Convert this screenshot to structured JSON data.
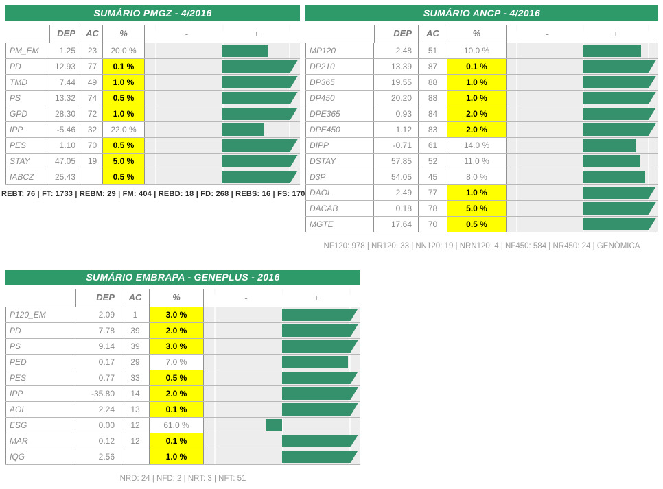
{
  "colors": {
    "header_green": "#2E9A6A",
    "bar_green": "#35916B",
    "highlight_yellow": "#FFFF00",
    "track_gray": "#EDEDED"
  },
  "tables": [
    {
      "id": "pmgz",
      "title": "SUMÁRIO PMGZ - 4/2016",
      "columns": {
        "dep": "DEP",
        "ac": "AC",
        "pct": "%",
        "minus": "-",
        "plus": "+"
      },
      "rows": [
        {
          "label": "PM_EM",
          "dep": "1.25",
          "ac": "23",
          "pct": "20.0 %",
          "highlight": false,
          "bar_pct": 68,
          "bar_overflow": false
        },
        {
          "label": "PD",
          "dep": "12.93",
          "ac": "77",
          "pct": "0.1 %",
          "highlight": true,
          "bar_pct": 100,
          "bar_overflow": true
        },
        {
          "label": "TMD",
          "dep": "7.44",
          "ac": "49",
          "pct": "1.0 %",
          "highlight": true,
          "bar_pct": 100,
          "bar_overflow": true
        },
        {
          "label": "PS",
          "dep": "13.32",
          "ac": "74",
          "pct": "0.5 %",
          "highlight": true,
          "bar_pct": 100,
          "bar_overflow": true
        },
        {
          "label": "GPD",
          "dep": "28.30",
          "ac": "72",
          "pct": "1.0 %",
          "highlight": true,
          "bar_pct": 100,
          "bar_overflow": true
        },
        {
          "label": "IPP",
          "dep": "-5.46",
          "ac": "32",
          "pct": "22.0 %",
          "highlight": false,
          "bar_pct": 63,
          "bar_overflow": false
        },
        {
          "label": "PES",
          "dep": "1.10",
          "ac": "70",
          "pct": "0.5 %",
          "highlight": true,
          "bar_pct": 100,
          "bar_overflow": true
        },
        {
          "label": "STAY",
          "dep": "47.05",
          "ac": "19",
          "pct": "5.0 %",
          "highlight": true,
          "bar_pct": 100,
          "bar_overflow": true
        },
        {
          "label": "IABCZ",
          "dep": "25.43",
          "ac": "",
          "pct": "0.5 %",
          "highlight": true,
          "bar_pct": 100,
          "bar_overflow": true
        }
      ],
      "footer": "REBT: 76 | FT: 1733 | REBM: 29 | FM: 404 | REBD: 18 | FD: 268 | REBS: 16 | FS: 170"
    },
    {
      "id": "ancp",
      "title": "SUMÁRIO ANCP - 4/2016",
      "columns": {
        "dep": "DEP",
        "ac": "AC",
        "pct": "%",
        "minus": "-",
        "plus": "+"
      },
      "rows": [
        {
          "label": "MP120",
          "dep": "2.48",
          "ac": "51",
          "pct": "10.0 %",
          "highlight": false,
          "bar_pct": 90,
          "bar_overflow": false
        },
        {
          "label": "DP210",
          "dep": "13.39",
          "ac": "87",
          "pct": "0.1 %",
          "highlight": true,
          "bar_pct": 100,
          "bar_overflow": true
        },
        {
          "label": "DP365",
          "dep": "19.55",
          "ac": "88",
          "pct": "1.0 %",
          "highlight": true,
          "bar_pct": 100,
          "bar_overflow": true
        },
        {
          "label": "DP450",
          "dep": "20.20",
          "ac": "88",
          "pct": "1.0 %",
          "highlight": true,
          "bar_pct": 100,
          "bar_overflow": true
        },
        {
          "label": "DPE365",
          "dep": "0.93",
          "ac": "84",
          "pct": "2.0 %",
          "highlight": true,
          "bar_pct": 100,
          "bar_overflow": true
        },
        {
          "label": "DPE450",
          "dep": "1.12",
          "ac": "83",
          "pct": "2.0 %",
          "highlight": true,
          "bar_pct": 100,
          "bar_overflow": true
        },
        {
          "label": "DIPP",
          "dep": "-0.71",
          "ac": "61",
          "pct": "14.0 %",
          "highlight": false,
          "bar_pct": 83,
          "bar_overflow": false
        },
        {
          "label": "DSTAY",
          "dep": "57.85",
          "ac": "52",
          "pct": "11.0 %",
          "highlight": false,
          "bar_pct": 89,
          "bar_overflow": false
        },
        {
          "label": "D3P",
          "dep": "54.05",
          "ac": "45",
          "pct": "8.0 %",
          "highlight": false,
          "bar_pct": 96,
          "bar_overflow": false
        },
        {
          "label": "DAOL",
          "dep": "2.49",
          "ac": "77",
          "pct": "1.0 %",
          "highlight": true,
          "bar_pct": 100,
          "bar_overflow": true
        },
        {
          "label": "DACAB",
          "dep": "0.18",
          "ac": "78",
          "pct": "5.0 %",
          "highlight": true,
          "bar_pct": 100,
          "bar_overflow": true
        },
        {
          "label": "MGTE",
          "dep": "17.64",
          "ac": "70",
          "pct": "0.5 %",
          "highlight": true,
          "bar_pct": 100,
          "bar_overflow": true
        }
      ],
      "footer": "NF120: 978 | NR120: 33 | NN120: 19 | NRN120: 4 | NF450: 584 | NR450: 24 | GENÔMICA"
    },
    {
      "id": "embrapa",
      "title": "SUMÁRIO EMBRAPA - GENEPLUS - 2016",
      "columns": {
        "dep": "DEP",
        "ac": "AC",
        "pct": "%",
        "minus": "-",
        "plus": "+"
      },
      "rows": [
        {
          "label": "P120_EM",
          "dep": "2.09",
          "ac": "1",
          "pct": "3.0 %",
          "highlight": true,
          "bar_pct": 100,
          "bar_overflow": true
        },
        {
          "label": "PD",
          "dep": "7.78",
          "ac": "39",
          "pct": "2.0 %",
          "highlight": true,
          "bar_pct": 100,
          "bar_overflow": true
        },
        {
          "label": "PS",
          "dep": "9.14",
          "ac": "39",
          "pct": "3.0 %",
          "highlight": true,
          "bar_pct": 100,
          "bar_overflow": true
        },
        {
          "label": "PED",
          "dep": "0.17",
          "ac": "29",
          "pct": "7.0 %",
          "highlight": false,
          "bar_pct": 98,
          "bar_overflow": false
        },
        {
          "label": "PES",
          "dep": "0.77",
          "ac": "33",
          "pct": "0.5 %",
          "highlight": true,
          "bar_pct": 100,
          "bar_overflow": true
        },
        {
          "label": "IPP",
          "dep": "-35.80",
          "ac": "14",
          "pct": "2.0 %",
          "highlight": true,
          "bar_pct": 100,
          "bar_overflow": true
        },
        {
          "label": "AOL",
          "dep": "2.24",
          "ac": "13",
          "pct": "0.1 %",
          "highlight": true,
          "bar_pct": 100,
          "bar_overflow": true
        },
        {
          "label": "ESG",
          "dep": "0.00",
          "ac": "12",
          "pct": "61.0 %",
          "highlight": false,
          "bar_pct": -24,
          "bar_overflow": false
        },
        {
          "label": "MAR",
          "dep": "0.12",
          "ac": "12",
          "pct": "0.1 %",
          "highlight": true,
          "bar_pct": 100,
          "bar_overflow": true
        },
        {
          "label": "IQG",
          "dep": "2.56",
          "ac": "",
          "pct": "1.0 %",
          "highlight": true,
          "bar_pct": 100,
          "bar_overflow": true
        }
      ],
      "footer": "NRD: 24 | NFD: 2 | NRT: 3 | NFT: 51"
    }
  ]
}
